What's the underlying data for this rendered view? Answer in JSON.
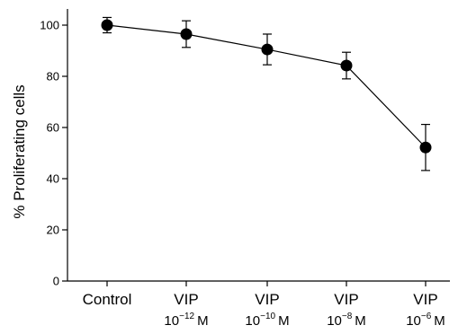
{
  "chart_data": {
    "type": "line",
    "title": "",
    "xlabel": "",
    "ylabel": "% Proliferating cells",
    "ylim": [
      0,
      105
    ],
    "yticks": [
      "0",
      "20",
      "40",
      "60",
      "80",
      "100"
    ],
    "categories": [
      {
        "label": "Control",
        "mantissa": "",
        "exponent": "",
        "unit": ""
      },
      {
        "label": "VIP",
        "mantissa": "10",
        "exponent": "−12",
        "unit": "M"
      },
      {
        "label": "VIP",
        "mantissa": "10",
        "exponent": "−10",
        "unit": "M"
      },
      {
        "label": "VIP",
        "mantissa": "10",
        "exponent": "−8",
        "unit": "M"
      },
      {
        "label": "VIP",
        "mantissa": "10",
        "exponent": "−6",
        "unit": "M"
      }
    ],
    "series": [
      {
        "values": [
          100,
          96.5,
          90.5,
          84.2,
          52.2
        ],
        "errors": [
          3,
          5.2,
          6,
          5.2,
          9
        ]
      }
    ],
    "grid": false,
    "colors": {
      "line": "#000000",
      "marker": "#000000"
    }
  }
}
